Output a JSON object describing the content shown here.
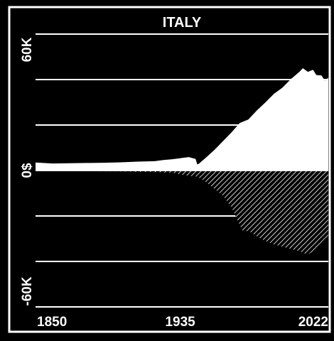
{
  "chart_data": {
    "type": "area",
    "title": "ITALY",
    "xlabel": "",
    "ylabel": "",
    "xlim": [
      1850,
      2022
    ],
    "ylim": [
      -60000,
      60000
    ],
    "x_ticks": [
      "1850",
      "1935",
      "2022"
    ],
    "y_ticks": [
      {
        "value": 60000,
        "label": "60K"
      },
      {
        "value": 0,
        "label": "0$"
      },
      {
        "value": -60000,
        "label": "-60K"
      }
    ],
    "grid_values": [
      60000,
      40000,
      20000,
      0,
      -20000,
      -40000,
      -60000
    ],
    "grid": true,
    "colors": {
      "background": "#000000",
      "positive": "#ffffff",
      "negative_hatch": "#ffffff"
    },
    "series": [
      {
        "style": "solid",
        "x": [
          1850,
          1860,
          1870,
          1880,
          1890,
          1900,
          1910,
          1920,
          1925,
          1930,
          1935,
          1940,
          1944,
          1945,
          1946,
          1950,
          1955,
          1960,
          1965,
          1970,
          1975,
          1980,
          1985,
          1990,
          1995,
          2000,
          2005,
          2007,
          2010,
          2013,
          2015,
          2018,
          2020,
          2022
        ],
        "values": [
          3500,
          3100,
          3200,
          3300,
          3400,
          3600,
          3900,
          4100,
          4600,
          4900,
          5400,
          5900,
          5100,
          2700,
          3000,
          5600,
          9000,
          12800,
          16700,
          20900,
          22400,
          26400,
          29900,
          33700,
          36400,
          40200,
          43400,
          45000,
          43400,
          44300,
          42000,
          41800,
          39500,
          40800
        ]
      },
      {
        "style": "hatched",
        "x": [
          1850,
          1880,
          1900,
          1920,
          1930,
          1935,
          1940,
          1945,
          1950,
          1955,
          1960,
          1965,
          1970,
          1972,
          1975,
          1980,
          1985,
          1990,
          1995,
          2000,
          2005,
          2008,
          2010,
          2013,
          2015,
          2020,
          2022
        ],
        "values": [
          -200,
          -300,
          -400,
          -700,
          -1000,
          -1700,
          -2300,
          -2700,
          -5000,
          -8000,
          -11000,
          -16000,
          -24000,
          -27000,
          -26500,
          -29000,
          -31000,
          -32500,
          -33500,
          -34500,
          -35500,
          -36500,
          -37000,
          -35500,
          -34000,
          -30000,
          -29000
        ]
      }
    ]
  }
}
